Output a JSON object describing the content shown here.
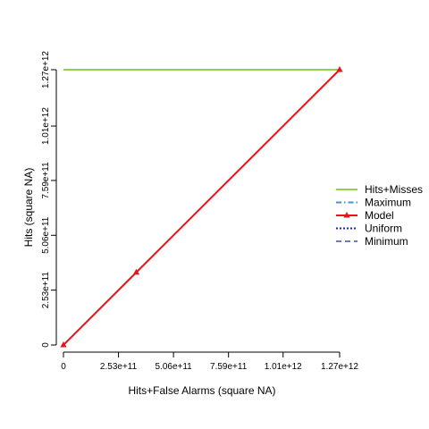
{
  "chart_data": {
    "type": "line",
    "xlabel": "Hits+False Alarms (square NA)",
    "ylabel": "Hits (square NA)",
    "xlim": [
      0,
      1270000000000.0
    ],
    "ylim": [
      0,
      1270000000000.0
    ],
    "x_ticks": [
      {
        "value": 0,
        "label": "0"
      },
      {
        "value": 253000000000.0,
        "label": "2.53e+11"
      },
      {
        "value": 506000000000.0,
        "label": "5.06e+11"
      },
      {
        "value": 759000000000.0,
        "label": "7.59e+11"
      },
      {
        "value": 1010000000000.0,
        "label": "1.01e+12"
      },
      {
        "value": 1270000000000.0,
        "label": "1.27e+12"
      }
    ],
    "y_ticks": [
      {
        "value": 0,
        "label": "0"
      },
      {
        "value": 253000000000.0,
        "label": "2.53e+11"
      },
      {
        "value": 506000000000.0,
        "label": "5.06e+11"
      },
      {
        "value": 759000000000.0,
        "label": "7.59e+11"
      },
      {
        "value": 1010000000000.0,
        "label": "1.01e+12"
      },
      {
        "value": 1270000000000.0,
        "label": "1.27e+12"
      }
    ],
    "series": [
      {
        "name": "Hits+Misses",
        "color": "#8fd14f",
        "dash": "solid",
        "marker": "none",
        "x": [
          0,
          1270000000000.0
        ],
        "y": [
          1270000000000.0,
          1270000000000.0
        ]
      },
      {
        "name": "Maximum",
        "color": "#4a90d9",
        "dash": "dashdot",
        "marker": "none",
        "x": [],
        "y": []
      },
      {
        "name": "Model",
        "color": "#e8141b",
        "dash": "solid",
        "marker": "triangle",
        "x": [
          0,
          335000000000.0,
          1270000000000.0
        ],
        "y": [
          0,
          335000000000.0,
          1270000000000.0
        ]
      },
      {
        "name": "Uniform",
        "color": "#1f1fc8",
        "dash": "dotted",
        "marker": "none",
        "x": [],
        "y": []
      },
      {
        "name": "Minimum",
        "color": "#6a7fb0",
        "dash": "dashed",
        "marker": "none",
        "x": [],
        "y": []
      }
    ],
    "legend": {
      "position": "right"
    },
    "grid": false
  }
}
